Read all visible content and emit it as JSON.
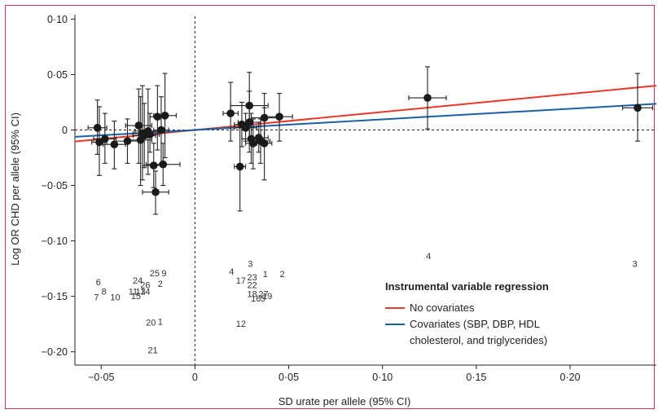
{
  "chart_data": {
    "type": "scatter",
    "title": "",
    "xlabel": "SD urate per allele (95% CI)",
    "ylabel": "Log OR CHD per allele (95% CI)",
    "xlim": [
      -0.064,
      0.246
    ],
    "ylim": [
      -0.212,
      0.104
    ],
    "x_ticks": [
      -0.05,
      0,
      0.05,
      0.1,
      0.15,
      0.2
    ],
    "x_tick_labels": [
      "−0·05",
      "0",
      "0·05",
      "0·10",
      "0·15",
      "0·20"
    ],
    "y_ticks": [
      0.1,
      0.05,
      0,
      -0.05,
      -0.1,
      -0.15,
      -0.2
    ],
    "y_tick_labels": [
      "0·10",
      "0·05",
      "0",
      "−0·05",
      "−0·10",
      "−0·15",
      "−0·20"
    ],
    "reference_lines": {
      "x": 0,
      "y": 0,
      "style": "dashed"
    },
    "points": [
      {
        "x": -0.052,
        "y": 0.002,
        "xerr": 0.005,
        "ylo": -0.022,
        "yhi": 0.027
      },
      {
        "x": -0.051,
        "y": -0.011,
        "xerr": 0.004,
        "ylo": -0.041,
        "yhi": 0.021
      },
      {
        "x": -0.048,
        "y": -0.008,
        "xerr": 0.006,
        "ylo": -0.03,
        "yhi": 0.015
      },
      {
        "x": -0.043,
        "y": -0.013,
        "xerr": 0.006,
        "ylo": -0.035,
        "yhi": 0.008
      },
      {
        "x": -0.036,
        "y": -0.01,
        "xerr": 0.007,
        "ylo": -0.03,
        "yhi": 0.01
      },
      {
        "x": -0.03,
        "y": 0.004,
        "xerr": 0.007,
        "ylo": -0.03,
        "yhi": 0.037
      },
      {
        "x": -0.029,
        "y": -0.009,
        "xerr": 0.006,
        "ylo": -0.05,
        "yhi": 0.03
      },
      {
        "x": -0.028,
        "y": -0.003,
        "xerr": 0.005,
        "ylo": -0.045,
        "yhi": 0.04
      },
      {
        "x": -0.027,
        "y": -0.005,
        "xerr": 0.006,
        "ylo": -0.034,
        "yhi": 0.024
      },
      {
        "x": -0.025,
        "y": -0.001,
        "xerr": 0.007,
        "ylo": -0.04,
        "yhi": 0.037
      },
      {
        "x": -0.024,
        "y": -0.004,
        "xerr": 0.005,
        "ylo": -0.02,
        "yhi": 0.015
      },
      {
        "x": -0.022,
        "y": -0.032,
        "xerr": 0.006,
        "ylo": -0.052,
        "yhi": -0.012
      },
      {
        "x": -0.021,
        "y": -0.056,
        "xerr": 0.007,
        "ylo": -0.076,
        "yhi": -0.037
      },
      {
        "x": -0.02,
        "y": 0.012,
        "xerr": 0.004,
        "ylo": -0.018,
        "yhi": 0.04
      },
      {
        "x": -0.018,
        "y": 0.0,
        "xerr": 0.004,
        "ylo": -0.03,
        "yhi": 0.03
      },
      {
        "x": -0.017,
        "y": -0.031,
        "xerr": 0.009,
        "ylo": -0.05,
        "yhi": -0.012
      },
      {
        "x": -0.016,
        "y": 0.013,
        "xerr": 0.006,
        "ylo": -0.025,
        "yhi": 0.051
      },
      {
        "x": 0.019,
        "y": 0.015,
        "xerr": 0.004,
        "ylo": -0.01,
        "yhi": 0.043
      },
      {
        "x": 0.024,
        "y": -0.033,
        "xerr": 0.003,
        "ylo": -0.073,
        "yhi": 0.007
      },
      {
        "x": 0.025,
        "y": 0.005,
        "xerr": 0.004,
        "ylo": -0.015,
        "yhi": 0.025
      },
      {
        "x": 0.027,
        "y": 0.002,
        "xerr": 0.006,
        "ylo": -0.01,
        "yhi": 0.015
      },
      {
        "x": 0.029,
        "y": 0.022,
        "xerr": 0.01,
        "ylo": -0.008,
        "yhi": 0.052
      },
      {
        "x": 0.029,
        "y": 0.007,
        "xerr": 0.006,
        "ylo": -0.02,
        "yhi": 0.035
      },
      {
        "x": 0.03,
        "y": -0.008,
        "xerr": 0.005,
        "ylo": -0.03,
        "yhi": 0.015
      },
      {
        "x": 0.031,
        "y": -0.012,
        "xerr": 0.004,
        "ylo": -0.035,
        "yhi": 0.01
      },
      {
        "x": 0.034,
        "y": -0.007,
        "xerr": 0.005,
        "ylo": -0.02,
        "yhi": 0.007
      },
      {
        "x": 0.035,
        "y": -0.01,
        "xerr": 0.005,
        "ylo": -0.03,
        "yhi": 0.01
      },
      {
        "x": 0.037,
        "y": 0.011,
        "xerr": 0.007,
        "ylo": -0.01,
        "yhi": 0.033
      },
      {
        "x": 0.037,
        "y": -0.012,
        "xerr": 0.004,
        "ylo": -0.045,
        "yhi": 0.02
      },
      {
        "x": 0.045,
        "y": 0.012,
        "xerr": 0.007,
        "ylo": -0.01,
        "yhi": 0.033
      },
      {
        "x": 0.124,
        "y": 0.029,
        "xerr": 0.01,
        "ylo": 0.001,
        "yhi": 0.057
      },
      {
        "x": 0.236,
        "y": 0.02,
        "xerr": 0.008,
        "ylo": -0.01,
        "yhi": 0.051
      }
    ],
    "point_labels": [
      {
        "text": "6",
        "x": -0.0515,
        "y": -0.1398
      },
      {
        "text": "7",
        "x": -0.0525,
        "y": -0.1535
      },
      {
        "text": "8",
        "x": -0.0485,
        "y": -0.1485
      },
      {
        "text": "10",
        "x": -0.0425,
        "y": -0.1535
      },
      {
        "text": "11",
        "x": -0.033,
        "y": -0.1485
      },
      {
        "text": "15",
        "x": -0.0315,
        "y": -0.1525
      },
      {
        "text": "13",
        "x": -0.029,
        "y": -0.1485
      },
      {
        "text": "14",
        "x": -0.0265,
        "y": -0.1485
      },
      {
        "text": "24",
        "x": -0.0305,
        "y": -0.1385
      },
      {
        "text": "26",
        "x": -0.0265,
        "y": -0.1425
      },
      {
        "text": "2",
        "x": -0.0185,
        "y": -0.1415
      },
      {
        "text": "25",
        "x": -0.0215,
        "y": -0.132
      },
      {
        "text": "9",
        "x": -0.0165,
        "y": -0.132
      },
      {
        "text": "20",
        "x": -0.0235,
        "y": -0.1765
      },
      {
        "text": "1",
        "x": -0.0185,
        "y": -0.1755
      },
      {
        "text": "21",
        "x": -0.0225,
        "y": -0.2015
      },
      {
        "text": "4",
        "x": 0.0195,
        "y": -0.1305
      },
      {
        "text": "3",
        "x": 0.0295,
        "y": -0.1235
      },
      {
        "text": "17",
        "x": 0.0245,
        "y": -0.1385
      },
      {
        "text": "23",
        "x": 0.0305,
        "y": -0.1355
      },
      {
        "text": "22",
        "x": 0.0305,
        "y": -0.1425
      },
      {
        "text": "18",
        "x": 0.0305,
        "y": -0.1505
      },
      {
        "text": "27",
        "x": 0.0365,
        "y": -0.1505
      },
      {
        "text": "16",
        "x": 0.0325,
        "y": -0.1545
      },
      {
        "text": "5",
        "x": 0.0362,
        "y": -0.1545
      },
      {
        "text": "19",
        "x": 0.0385,
        "y": -0.1525
      },
      {
        "text": "1",
        "x": 0.0375,
        "y": -0.1325
      },
      {
        "text": "2",
        "x": 0.0465,
        "y": -0.1325
      },
      {
        "text": "12",
        "x": 0.0245,
        "y": -0.1775
      },
      {
        "text": "4",
        "x": 0.1245,
        "y": -0.1165
      },
      {
        "text": "3",
        "x": 0.2345,
        "y": -0.1235
      }
    ],
    "series": [
      {
        "name": "No covariates",
        "color": "#e8392b",
        "x": [
          -0.064,
          0.246
        ],
        "y": [
          -0.0104,
          0.04
        ]
      },
      {
        "name": "Covariates (SBP, DBP, HDL cholesterol, and triglycerides)",
        "color": "#1a5fa6",
        "x": [
          -0.064,
          0.246
        ],
        "y": [
          -0.0061,
          0.0236
        ]
      }
    ],
    "legend": {
      "title": "Instrumental variable regression",
      "entries": [
        {
          "text": "No covariates",
          "color": "#e8392b"
        },
        {
          "text": "Covariates (SBP, DBP, HDL",
          "color": "#1a5fa6"
        },
        {
          "text": "cholesterol, and triglycerides)",
          "color": ""
        }
      ],
      "placement": "bottom-right"
    },
    "frame_color": "#c8325a"
  }
}
